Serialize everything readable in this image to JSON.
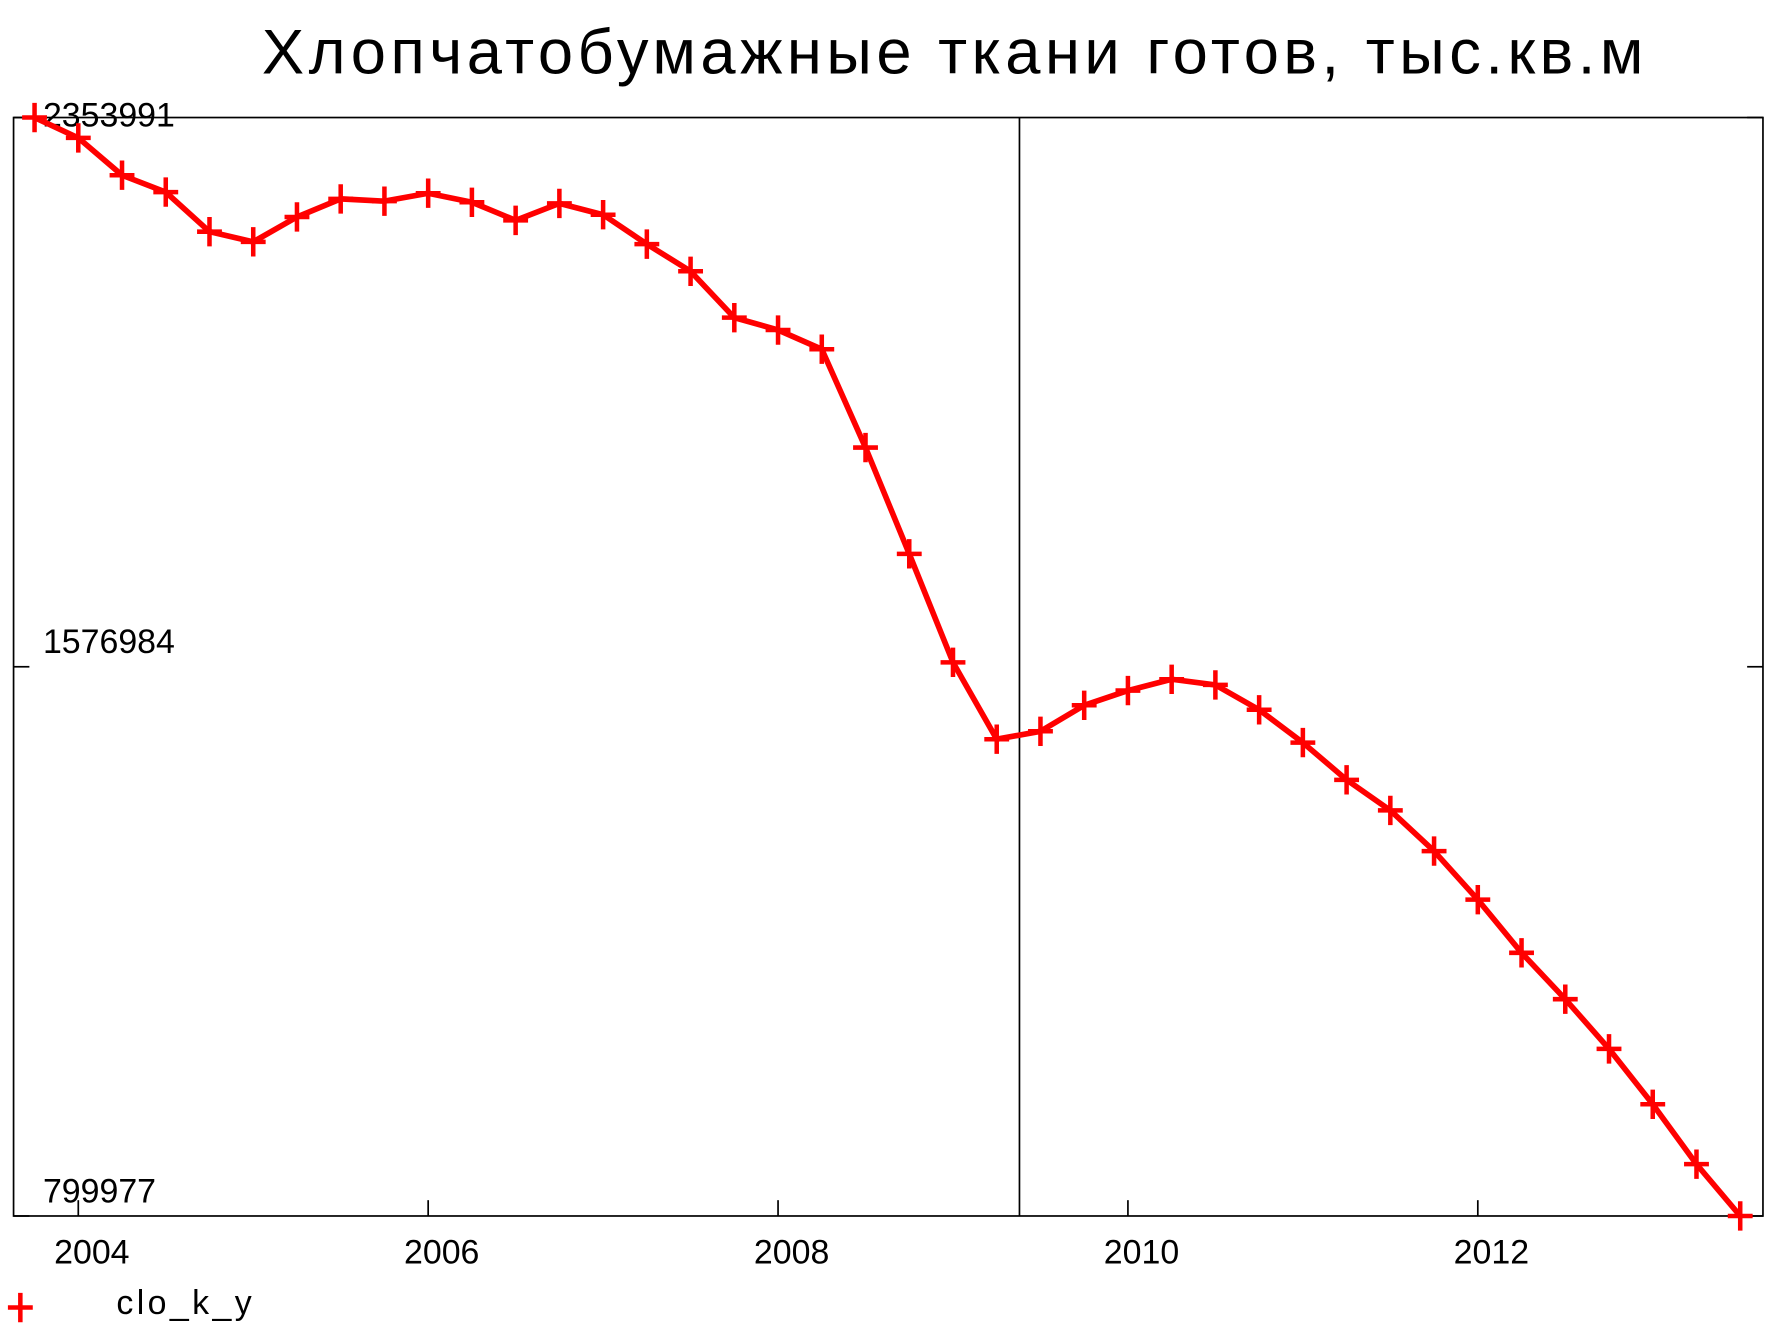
{
  "chart_data": {
    "type": "line",
    "title": "Хлопчатобумажные ткани готов, тыс.кв.м",
    "x": [
      2003.75,
      2004,
      2004.25,
      2004.5,
      2004.75,
      2005,
      2005.25,
      2005.5,
      2005.75,
      2006,
      2006.25,
      2006.5,
      2006.75,
      2007,
      2007.25,
      2007.5,
      2007.75,
      2008,
      2008.25,
      2008.5,
      2008.75,
      2009,
      2009.25,
      2009.5,
      2009.75,
      2010,
      2010.25,
      2010.5,
      2010.75,
      2011,
      2011.25,
      2011.5,
      2011.75,
      2012,
      2012.25,
      2012.5,
      2012.75,
      2013,
      2013.25,
      2013.5
    ],
    "series": [
      {
        "name": "clo_k_y",
        "color": "#ff0000",
        "values": [
          2353991,
          2325200,
          2272400,
          2248500,
          2192500,
          2178100,
          2213300,
          2238900,
          2235700,
          2246900,
          2234100,
          2208500,
          2232500,
          2216500,
          2174900,
          2136500,
          2070900,
          2053400,
          2026200,
          1887100,
          1736700,
          1583200,
          1474500,
          1485700,
          1522500,
          1543300,
          1559300,
          1551300,
          1516100,
          1469700,
          1417000,
          1373800,
          1316200,
          1247500,
          1172300,
          1106700,
          1036400,
          958000,
          873300,
          799977
        ]
      }
    ],
    "xlim": [
      2003.63,
      2013.63
    ],
    "xticks": [
      2004,
      2006,
      2008,
      2010,
      2012
    ],
    "ylim": [
      799977,
      2353991
    ],
    "yticks": [
      799977,
      1576984,
      2353991
    ],
    "vline": 2009.38
  }
}
